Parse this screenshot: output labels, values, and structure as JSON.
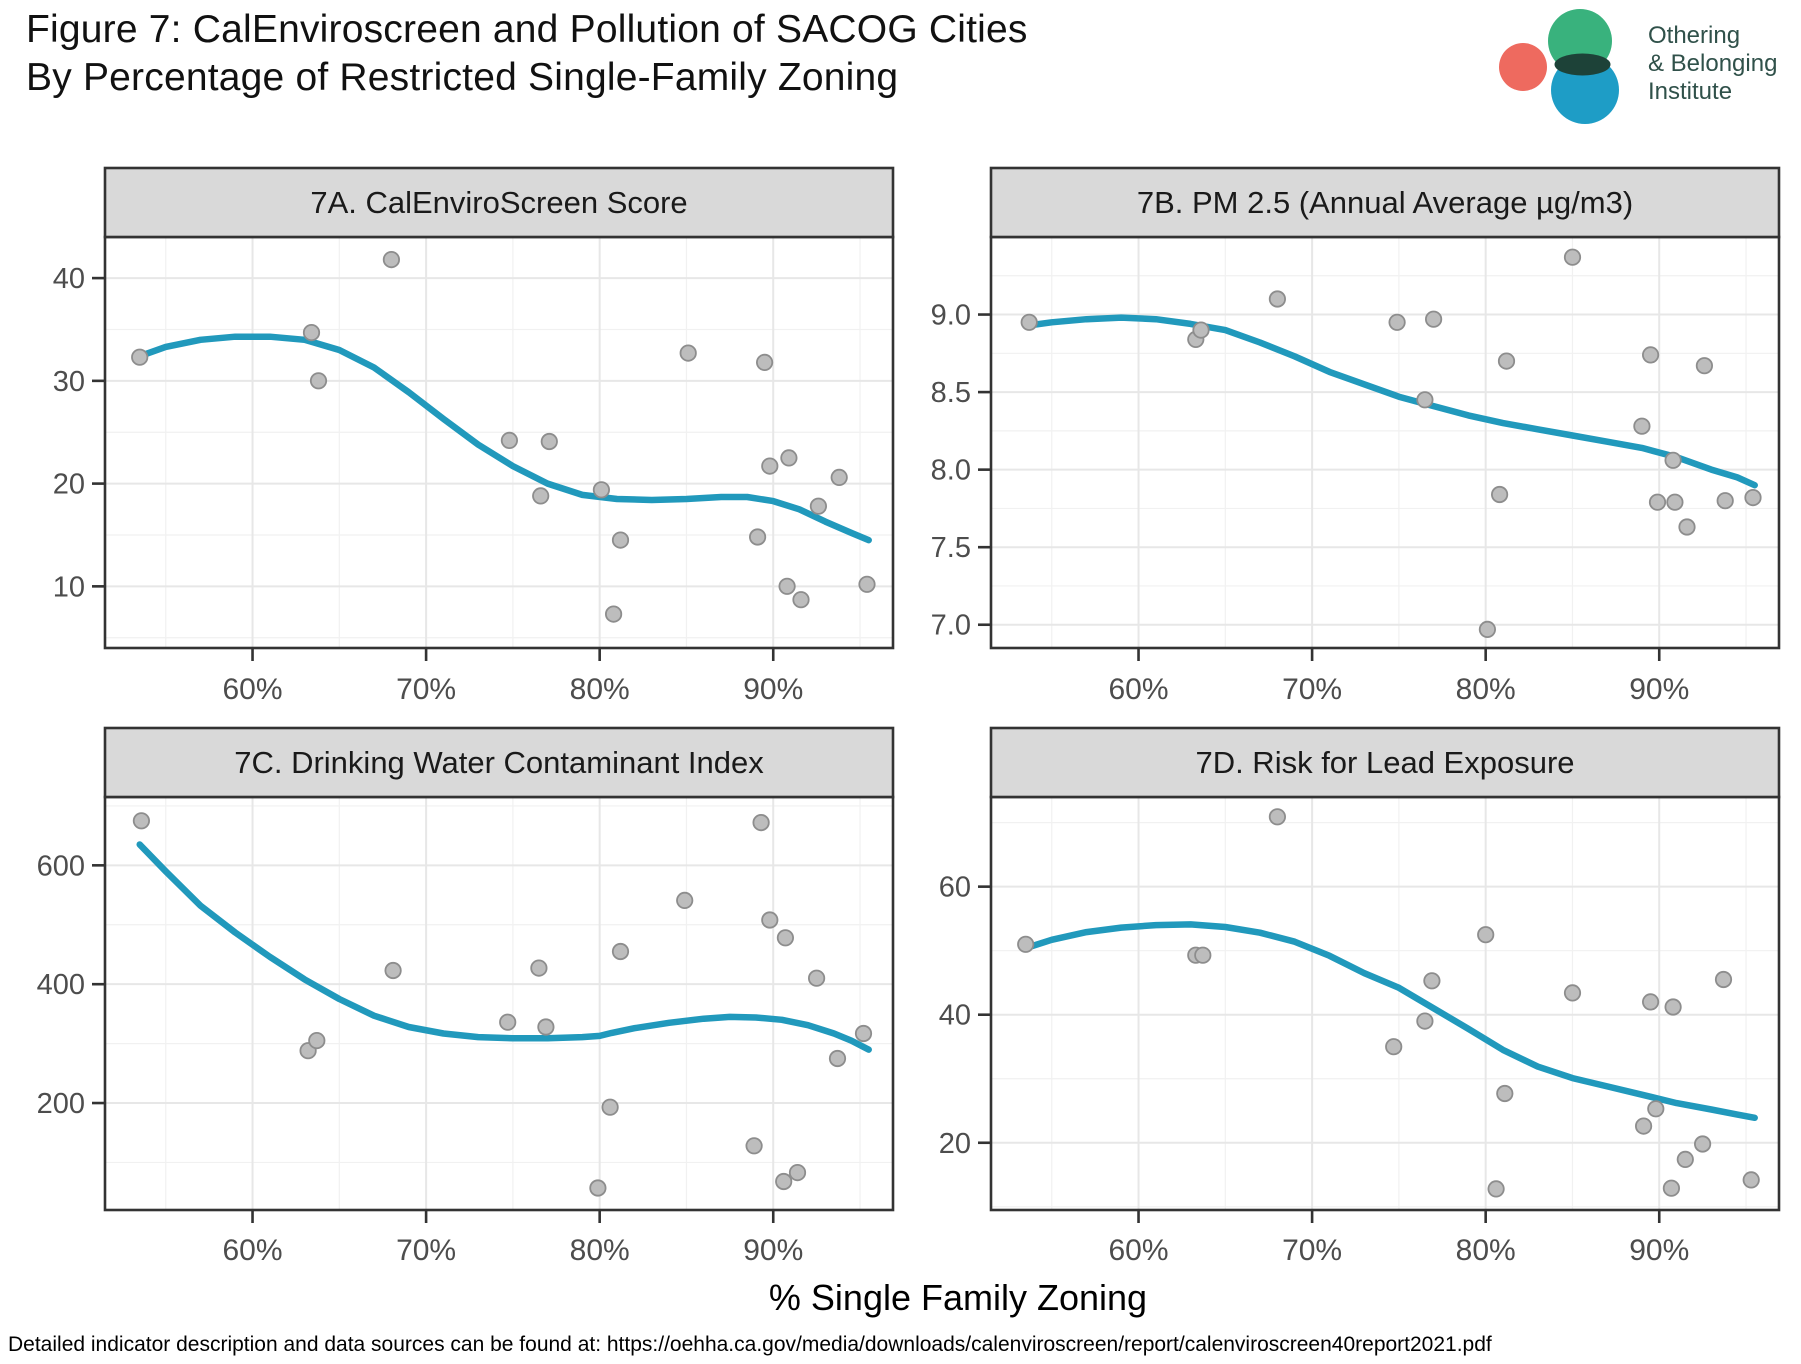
{
  "header": {
    "title_line1": "Figure 7: CalEnviroscreen and Pollution of SACOG Cities",
    "title_line2": "By Percentage of Restricted Single-Family Zoning"
  },
  "logo": {
    "line1": "Othering",
    "line2": "& Belonging",
    "line3": "Institute",
    "colors": {
      "salmon": "#ee6a5f",
      "green": "#39b27d",
      "blue": "#1e9dc6",
      "overlap": "#1d4238",
      "text": "#30514a"
    }
  },
  "footer": {
    "text": "Detailed indicator description and data sources can be found at: https://oehha.ca.gov/media/downloads/calenviroscreen/report/calenviroscreen40report2021.pdf"
  },
  "chart_data": {
    "type": "scatter",
    "x_axis": {
      "title": "% Single Family Zoning",
      "lim": [
        51.5,
        96.9
      ],
      "ticks": [
        60,
        70,
        80,
        90
      ],
      "tick_labels": [
        "60%",
        "70%",
        "80%",
        "90%"
      ],
      "minor_ticks": [
        55,
        65,
        75,
        85,
        95
      ]
    },
    "style": {
      "point_fill": "#bdbdbd",
      "point_stroke": "#8d8d8d",
      "line_color": "#2199bc",
      "grid_major": "#e7e7e7",
      "grid_minor": "#f1f1f1",
      "panel_border": "#333333",
      "strip_fill": "#d9d9d9",
      "strip_text": "#1a1a1a",
      "axis_text": "#4d4d4d"
    },
    "panels": [
      {
        "id": "7A",
        "title": "7A. CalEnviroScreen Score",
        "row": 0,
        "col": 0,
        "ylim": [
          4,
          44
        ],
        "yticks": [
          10,
          20,
          30,
          40
        ],
        "ytick_labels": [
          "10",
          "20",
          "30",
          "40"
        ],
        "yminor": [
          5,
          15,
          25,
          35
        ],
        "points": [
          [
            53.5,
            32.3
          ],
          [
            63.4,
            34.7
          ],
          [
            63.8,
            30.0
          ],
          [
            68.0,
            41.8
          ],
          [
            74.8,
            24.2
          ],
          [
            76.6,
            18.8
          ],
          [
            77.1,
            24.1
          ],
          [
            80.1,
            19.4
          ],
          [
            80.8,
            7.3
          ],
          [
            81.2,
            14.5
          ],
          [
            85.1,
            32.7
          ],
          [
            89.1,
            14.8
          ],
          [
            89.5,
            31.8
          ],
          [
            89.8,
            21.7
          ],
          [
            90.8,
            10.0
          ],
          [
            90.9,
            22.5
          ],
          [
            91.6,
            8.7
          ],
          [
            92.6,
            17.8
          ],
          [
            93.8,
            20.6
          ],
          [
            95.4,
            10.2
          ]
        ],
        "loess": [
          [
            53.5,
            32.4
          ],
          [
            55,
            33.3
          ],
          [
            57,
            34.0
          ],
          [
            59,
            34.3
          ],
          [
            61,
            34.3
          ],
          [
            63,
            34.0
          ],
          [
            65,
            33.0
          ],
          [
            67,
            31.3
          ],
          [
            69,
            28.9
          ],
          [
            71,
            26.3
          ],
          [
            73,
            23.8
          ],
          [
            75,
            21.7
          ],
          [
            77,
            20.0
          ],
          [
            79,
            18.9
          ],
          [
            81,
            18.5
          ],
          [
            83,
            18.4
          ],
          [
            85,
            18.5
          ],
          [
            87,
            18.7
          ],
          [
            88.5,
            18.7
          ],
          [
            90,
            18.3
          ],
          [
            91.5,
            17.5
          ],
          [
            93,
            16.3
          ],
          [
            94.5,
            15.2
          ],
          [
            95.5,
            14.5
          ]
        ]
      },
      {
        "id": "7B",
        "title": "7B. PM 2.5 (Annual Average µg/m3)",
        "row": 0,
        "col": 1,
        "ylim": [
          6.85,
          9.5
        ],
        "yticks": [
          7.0,
          7.5,
          8.0,
          8.5,
          9.0
        ],
        "ytick_labels": [
          "7.0",
          "7.5",
          "8.0",
          "8.5",
          "9.0"
        ],
        "yminor": [
          7.25,
          7.75,
          8.25,
          8.75,
          9.25
        ],
        "points": [
          [
            53.7,
            8.95
          ],
          [
            63.3,
            8.84
          ],
          [
            63.6,
            8.9
          ],
          [
            68.0,
            9.1
          ],
          [
            74.9,
            8.95
          ],
          [
            76.5,
            8.45
          ],
          [
            77.0,
            8.97
          ],
          [
            80.1,
            6.97
          ],
          [
            80.8,
            7.84
          ],
          [
            81.2,
            8.7
          ],
          [
            85.0,
            9.37
          ],
          [
            89.0,
            8.28
          ],
          [
            89.5,
            8.74
          ],
          [
            89.9,
            7.79
          ],
          [
            90.8,
            8.06
          ],
          [
            90.9,
            7.79
          ],
          [
            91.6,
            7.63
          ],
          [
            92.6,
            8.67
          ],
          [
            93.8,
            7.8
          ],
          [
            95.4,
            7.82
          ]
        ],
        "loess": [
          [
            53.7,
            8.93
          ],
          [
            55,
            8.95
          ],
          [
            57,
            8.97
          ],
          [
            59,
            8.98
          ],
          [
            61,
            8.97
          ],
          [
            63,
            8.94
          ],
          [
            65,
            8.9
          ],
          [
            67,
            8.82
          ],
          [
            69,
            8.73
          ],
          [
            71,
            8.63
          ],
          [
            73,
            8.55
          ],
          [
            75,
            8.47
          ],
          [
            77,
            8.41
          ],
          [
            79,
            8.35
          ],
          [
            81,
            8.3
          ],
          [
            83,
            8.26
          ],
          [
            85,
            8.22
          ],
          [
            87,
            8.18
          ],
          [
            89,
            8.14
          ],
          [
            91,
            8.08
          ],
          [
            93,
            8.0
          ],
          [
            94.5,
            7.95
          ],
          [
            95.5,
            7.9
          ]
        ]
      },
      {
        "id": "7C",
        "title": "7C. Drinking Water Contaminant Index",
        "row": 1,
        "col": 0,
        "ylim": [
          20,
          715
        ],
        "yticks": [
          200,
          400,
          600
        ],
        "ytick_labels": [
          "200",
          "400",
          "600"
        ],
        "yminor": [
          100,
          300,
          500,
          700
        ],
        "points": [
          [
            53.6,
            675
          ],
          [
            63.2,
            288
          ],
          [
            63.7,
            305
          ],
          [
            68.1,
            423
          ],
          [
            74.7,
            336
          ],
          [
            76.5,
            427
          ],
          [
            76.9,
            328
          ],
          [
            79.9,
            57
          ],
          [
            80.6,
            193
          ],
          [
            81.2,
            455
          ],
          [
            84.9,
            541
          ],
          [
            88.9,
            128
          ],
          [
            89.3,
            672
          ],
          [
            89.8,
            508
          ],
          [
            90.6,
            68
          ],
          [
            90.7,
            478
          ],
          [
            91.4,
            83
          ],
          [
            92.5,
            410
          ],
          [
            93.7,
            275
          ],
          [
            95.2,
            317
          ]
        ],
        "loess": [
          [
            53.5,
            635
          ],
          [
            55,
            590
          ],
          [
            57,
            532
          ],
          [
            59,
            487
          ],
          [
            61,
            446
          ],
          [
            63,
            408
          ],
          [
            65,
            375
          ],
          [
            67,
            347
          ],
          [
            69,
            328
          ],
          [
            71,
            317
          ],
          [
            73,
            311
          ],
          [
            75,
            309
          ],
          [
            77,
            309
          ],
          [
            79,
            311
          ],
          [
            80,
            313
          ],
          [
            80.7,
            318
          ],
          [
            82,
            326
          ],
          [
            84,
            335
          ],
          [
            86,
            342
          ],
          [
            87.5,
            345
          ],
          [
            89,
            344
          ],
          [
            90.5,
            340
          ],
          [
            92,
            331
          ],
          [
            93.5,
            317
          ],
          [
            94.5,
            305
          ],
          [
            95.5,
            290
          ]
        ]
      },
      {
        "id": "7D",
        "title": "7D. Risk for Lead Exposure",
        "row": 1,
        "col": 1,
        "ylim": [
          9.5,
          74
        ],
        "yticks": [
          20,
          40,
          60
        ],
        "ytick_labels": [
          "20",
          "40",
          "60"
        ],
        "yminor": [
          10,
          30,
          50,
          70
        ],
        "points": [
          [
            53.5,
            51.0
          ],
          [
            63.3,
            49.3
          ],
          [
            63.7,
            49.3
          ],
          [
            68.0,
            70.9
          ],
          [
            74.7,
            35.0
          ],
          [
            76.5,
            39.0
          ],
          [
            76.9,
            45.3
          ],
          [
            80.0,
            52.5
          ],
          [
            80.6,
            12.8
          ],
          [
            81.1,
            27.7
          ],
          [
            85.0,
            43.4
          ],
          [
            89.1,
            22.6
          ],
          [
            89.5,
            42.0
          ],
          [
            89.8,
            25.3
          ],
          [
            90.7,
            12.9
          ],
          [
            90.8,
            41.2
          ],
          [
            91.5,
            17.4
          ],
          [
            92.5,
            19.8
          ],
          [
            93.7,
            45.5
          ],
          [
            95.3,
            14.2
          ]
        ],
        "loess": [
          [
            53.5,
            50.4
          ],
          [
            55,
            51.7
          ],
          [
            57,
            52.9
          ],
          [
            59,
            53.6
          ],
          [
            61,
            54.0
          ],
          [
            63,
            54.1
          ],
          [
            65,
            53.7
          ],
          [
            67,
            52.8
          ],
          [
            69,
            51.4
          ],
          [
            71,
            49.2
          ],
          [
            73,
            46.5
          ],
          [
            75,
            44.2
          ],
          [
            77,
            41.0
          ],
          [
            79,
            37.8
          ],
          [
            81,
            34.5
          ],
          [
            83,
            31.9
          ],
          [
            85,
            30.1
          ],
          [
            87,
            28.8
          ],
          [
            89,
            27.5
          ],
          [
            91,
            26.2
          ],
          [
            93,
            25.2
          ],
          [
            94.5,
            24.4
          ],
          [
            95.5,
            23.9
          ]
        ]
      }
    ]
  }
}
